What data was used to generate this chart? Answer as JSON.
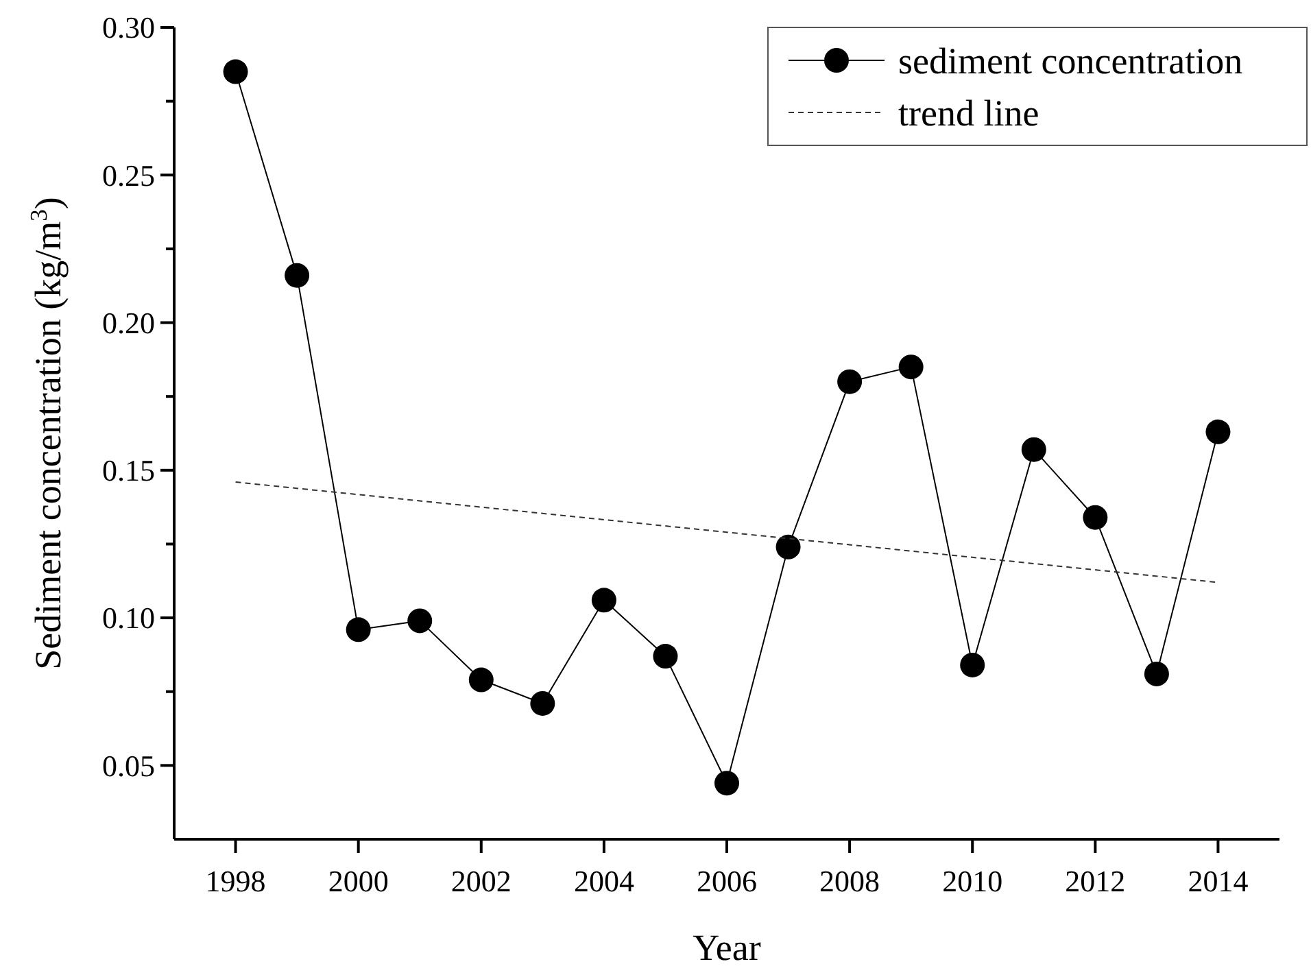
{
  "chart_data": {
    "type": "line",
    "xlabel": "Year",
    "ylabel": "Sediment concentration (kg/m$^{3}$)",
    "xlim": [
      1997,
      2015
    ],
    "xticks": [
      1998,
      2000,
      2002,
      2004,
      2006,
      2008,
      2010,
      2012,
      2014
    ],
    "ylim": [
      0.025,
      0.3
    ],
    "yticks": [
      {
        "value": 0.05,
        "label": "0.05"
      },
      {
        "value": 0.075,
        "label": null
      },
      {
        "value": 0.1,
        "label": "0.10"
      },
      {
        "value": 0.125,
        "label": null
      },
      {
        "value": 0.15,
        "label": "0.15"
      },
      {
        "value": 0.175,
        "label": null
      },
      {
        "value": 0.2,
        "label": "0.20"
      },
      {
        "value": 0.225,
        "label": null
      },
      {
        "value": 0.25,
        "label": "0.25"
      },
      {
        "value": 0.275,
        "label": null
      },
      {
        "value": 0.3,
        "label": "0.30"
      }
    ],
    "legend": "top right",
    "grid": false,
    "series": [
      {
        "name": "sediment concentration",
        "color": "#000000",
        "marker": "circle",
        "line_style": "solid",
        "x": [
          1998,
          1999,
          2000,
          2001,
          2002,
          2003,
          2004,
          2005,
          2006,
          2007,
          2008,
          2009,
          2010,
          2011,
          2012,
          2013,
          2014
        ],
        "values": [
          0.285,
          0.216,
          0.096,
          0.099,
          0.079,
          0.071,
          0.106,
          0.087,
          0.044,
          0.124,
          0.18,
          0.185,
          0.084,
          0.157,
          0.134,
          0.081,
          0.163
        ]
      },
      {
        "name": "trend line",
        "color": "#333333",
        "marker": "none",
        "line_style": "dashed",
        "x": [
          1998,
          2014
        ],
        "values": [
          0.146,
          0.112
        ]
      }
    ]
  }
}
